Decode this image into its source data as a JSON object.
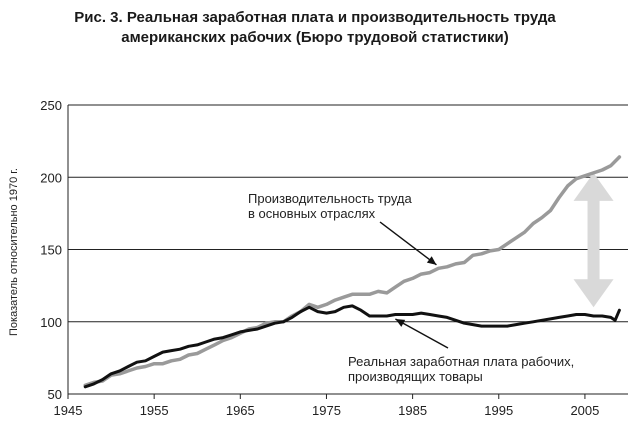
{
  "title_line1": "Рис. 3. Реальная заработная плата и производительность труда",
  "title_line2": "американских рабочих (Бюро трудовой статистики)",
  "chart_data": {
    "type": "line",
    "title": "Рис. 3. Реальная заработная плата и производительность труда американских рабочих (Бюро трудовой статистики)",
    "ylabel": "Показатель относительно 1970 г.",
    "xlabel": "",
    "xlim": [
      1945,
      2010
    ],
    "ylim": [
      50,
      250
    ],
    "xticks": [
      "1945",
      "1955",
      "1965",
      "1975",
      "1985",
      "1995",
      "2005"
    ],
    "yticks": [
      "50",
      "100",
      "150",
      "200",
      "250"
    ],
    "grid": "horizontal",
    "series": [
      {
        "name": "Производительность труда в основных отраслях",
        "color": "#9a9a9a",
        "x": [
          1947,
          1948,
          1949,
          1950,
          1951,
          1952,
          1953,
          1954,
          1955,
          1956,
          1957,
          1958,
          1959,
          1960,
          1961,
          1962,
          1963,
          1964,
          1965,
          1966,
          1967,
          1968,
          1969,
          1970,
          1971,
          1972,
          1973,
          1974,
          1975,
          1976,
          1977,
          1978,
          1979,
          1980,
          1981,
          1982,
          1983,
          1984,
          1985,
          1986,
          1987,
          1988,
          1989,
          1990,
          1991,
          1992,
          1993,
          1994,
          1995,
          1996,
          1997,
          1998,
          1999,
          2000,
          2001,
          2002,
          2003,
          2004,
          2005,
          2006,
          2007,
          2008,
          2009
        ],
        "values": [
          56,
          58,
          59,
          63,
          64,
          66,
          68,
          69,
          71,
          71,
          73,
          74,
          77,
          78,
          81,
          84,
          87,
          89,
          92,
          95,
          96,
          99,
          100,
          100,
          104,
          107,
          112,
          110,
          112,
          115,
          117,
          119,
          119,
          119,
          121,
          120,
          124,
          128,
          130,
          133,
          134,
          137,
          138,
          140,
          141,
          146,
          147,
          149,
          150,
          154,
          158,
          162,
          168,
          172,
          177,
          186,
          194,
          199,
          201,
          203,
          205,
          208,
          214
        ]
      },
      {
        "name": "Реальная заработная плата рабочих, производящих товары",
        "color": "#111111",
        "x": [
          1947,
          1948,
          1949,
          1950,
          1951,
          1952,
          1953,
          1954,
          1955,
          1956,
          1957,
          1958,
          1959,
          1960,
          1961,
          1962,
          1963,
          1964,
          1965,
          1966,
          1967,
          1968,
          1969,
          1970,
          1971,
          1972,
          1973,
          1974,
          1975,
          1976,
          1977,
          1978,
          1979,
          1980,
          1981,
          1982,
          1983,
          1984,
          1985,
          1986,
          1987,
          1988,
          1989,
          1990,
          1991,
          1992,
          1993,
          1994,
          1995,
          1996,
          1997,
          1998,
          1999,
          2000,
          2001,
          2002,
          2003,
          2004,
          2005,
          2006,
          2007,
          2008,
          2008.5,
          2009
        ],
        "values": [
          55,
          57,
          60,
          64,
          66,
          69,
          72,
          73,
          76,
          79,
          80,
          81,
          83,
          84,
          86,
          88,
          89,
          91,
          93,
          94,
          95,
          97,
          99,
          100,
          103,
          107,
          110,
          107,
          106,
          107,
          110,
          111,
          108,
          104,
          104,
          104,
          105,
          105,
          105,
          106,
          105,
          104,
          103,
          101,
          99,
          98,
          97,
          97,
          97,
          97,
          98,
          99,
          100,
          101,
          102,
          103,
          104,
          105,
          105,
          104,
          104,
          103,
          101,
          108
        ]
      }
    ],
    "annotations": [
      {
        "lines": [
          "Производительность труда",
          "в основных отраслях"
        ],
        "points_to": [
          1988,
          138
        ]
      },
      {
        "lines": [
          "Реальная заработная плата рабочих,",
          "производящих товары"
        ],
        "points_to": [
          1983,
          104
        ]
      },
      {
        "type": "double-arrow",
        "x": 2006,
        "from": 110,
        "to": 203,
        "color": "#d9d9d9"
      }
    ]
  }
}
